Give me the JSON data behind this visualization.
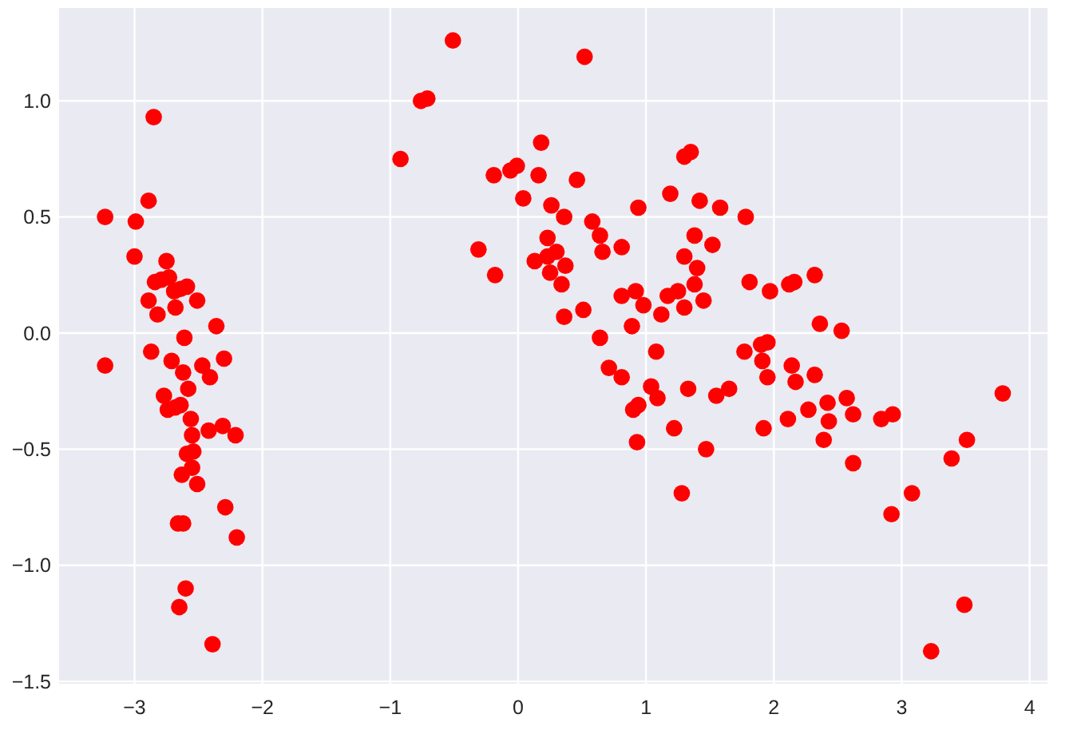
{
  "chart_data": {
    "type": "scatter",
    "color": "#ff0000",
    "marker": "circle",
    "grid": true,
    "xlim": [
      -3.59,
      4.14
    ],
    "ylim": [
      -1.51,
      1.4
    ],
    "xticks": [
      {
        "value": -3,
        "label": "−3"
      },
      {
        "value": -2,
        "label": "−2"
      },
      {
        "value": -1,
        "label": "−1"
      },
      0,
      1,
      2,
      3,
      4
    ],
    "yticks": [
      {
        "value": -1.5,
        "label": "−1.5"
      },
      {
        "value": -1,
        "label": "−1.0"
      },
      {
        "value": -0.5,
        "label": "−0.5"
      },
      {
        "value": 0,
        "label": "0.0"
      },
      {
        "value": 0.5,
        "label": "0.5"
      },
      {
        "value": 1,
        "label": "1.0"
      }
    ],
    "x": [
      -2.85,
      -2.89,
      -3.23,
      -2.99,
      -3.0,
      -2.75,
      -2.84,
      -2.79,
      -2.73,
      -2.69,
      -2.64,
      -2.59,
      -2.89,
      -2.68,
      -2.51,
      -2.82,
      -2.36,
      -2.61,
      -2.87,
      -3.23,
      -2.71,
      -2.47,
      -2.3,
      -2.62,
      -2.41,
      -2.58,
      -2.77,
      -2.74,
      -2.68,
      -2.64,
      -2.56,
      -2.42,
      -2.31,
      -2.55,
      -2.21,
      -2.54,
      -2.59,
      -2.55,
      -2.63,
      -2.51,
      -2.29,
      -2.66,
      -2.62,
      -2.2,
      -2.6,
      -2.65,
      -2.39,
      -0.51,
      0.52,
      -0.76,
      -0.71,
      -0.92,
      0.18,
      -0.19,
      -0.06,
      -0.01,
      0.16,
      0.46,
      0.04,
      0.26,
      0.36,
      0.58,
      0.64,
      0.66,
      0.81,
      0.94,
      1.19,
      1.3,
      1.35,
      -0.31,
      -0.18,
      0.23,
      0.13,
      0.23,
      0.3,
      0.25,
      0.37,
      0.34,
      0.36,
      0.51,
      0.81,
      0.92,
      0.98,
      1.12,
      1.17,
      1.25,
      1.3,
      0.89,
      0.64,
      1.08,
      0.71,
      0.81,
      1.04,
      1.09,
      1.33,
      0.9,
      0.94,
      1.22,
      0.93,
      1.47,
      1.28,
      1.42,
      1.58,
      1.78,
      1.38,
      1.52,
      1.3,
      1.4,
      1.38,
      1.45,
      1.81,
      1.97,
      2.12,
      2.16,
      2.32,
      2.36,
      2.53,
      1.77,
      1.9,
      1.95,
      1.91,
      2.14,
      1.95,
      2.17,
      2.32,
      1.55,
      1.65,
      1.92,
      2.11,
      2.27,
      2.42,
      2.43,
      2.57,
      2.62,
      2.39,
      2.62,
      2.84,
      2.93,
      3.79,
      3.51,
      3.39,
      3.08,
      2.92,
      3.49,
      3.23
    ],
    "values": [
      0.93,
      0.57,
      0.5,
      0.48,
      0.33,
      0.31,
      0.22,
      0.23,
      0.24,
      0.18,
      0.19,
      0.2,
      0.14,
      0.11,
      0.14,
      0.08,
      0.03,
      -0.02,
      -0.08,
      -0.14,
      -0.12,
      -0.14,
      -0.11,
      -0.17,
      -0.19,
      -0.24,
      -0.27,
      -0.33,
      -0.32,
      -0.31,
      -0.37,
      -0.42,
      -0.4,
      -0.44,
      -0.44,
      -0.51,
      -0.52,
      -0.58,
      -0.61,
      -0.65,
      -0.75,
      -0.82,
      -0.82,
      -0.88,
      -1.1,
      -1.18,
      -1.34,
      1.26,
      1.19,
      1.0,
      1.01,
      0.75,
      0.82,
      0.68,
      0.7,
      0.72,
      0.68,
      0.66,
      0.58,
      0.55,
      0.5,
      0.48,
      0.42,
      0.35,
      0.37,
      0.54,
      0.6,
      0.76,
      0.78,
      0.36,
      0.25,
      0.41,
      0.31,
      0.33,
      0.35,
      0.26,
      0.29,
      0.21,
      0.07,
      0.1,
      0.16,
      0.18,
      0.12,
      0.08,
      0.16,
      0.18,
      0.11,
      0.03,
      -0.02,
      -0.08,
      -0.15,
      -0.19,
      -0.23,
      -0.28,
      -0.24,
      -0.33,
      -0.31,
      -0.41,
      -0.47,
      -0.5,
      -0.69,
      0.57,
      0.54,
      0.5,
      0.42,
      0.38,
      0.33,
      0.28,
      0.21,
      0.14,
      0.22,
      0.18,
      0.21,
      0.22,
      0.25,
      0.04,
      0.01,
      -0.08,
      -0.05,
      -0.04,
      -0.12,
      -0.14,
      -0.19,
      -0.21,
      -0.18,
      -0.27,
      -0.24,
      -0.41,
      -0.37,
      -0.33,
      -0.3,
      -0.38,
      -0.28,
      -0.35,
      -0.46,
      -0.56,
      -0.37,
      -0.35,
      -0.26,
      -0.46,
      -0.54,
      -0.69,
      -0.78,
      -1.17,
      -1.37
    ]
  }
}
